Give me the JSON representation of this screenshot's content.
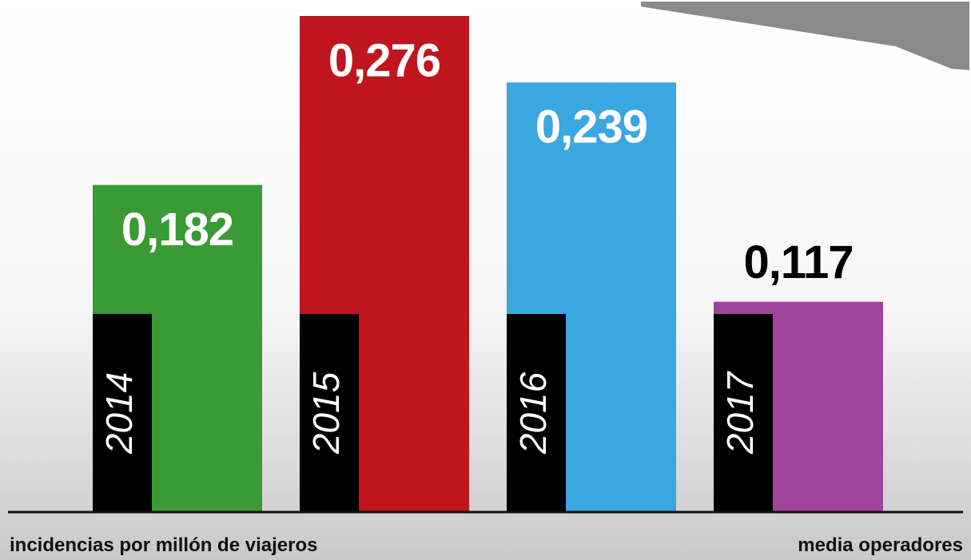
{
  "chart_data": {
    "type": "bar",
    "categories": [
      "2014",
      "2015",
      "2016",
      "2017"
    ],
    "values": [
      0.182,
      0.276,
      0.239,
      0.117
    ],
    "value_labels": [
      "0,182",
      "0,276",
      "0,239",
      "0,117"
    ],
    "colors": [
      "#3a9a36",
      "#c0141f",
      "#3ba7e1",
      "#a0449a"
    ],
    "ylim": [
      0,
      0.28
    ],
    "y_axis_label": "incidencias por millón de viajeros",
    "note": "media operadores"
  }
}
